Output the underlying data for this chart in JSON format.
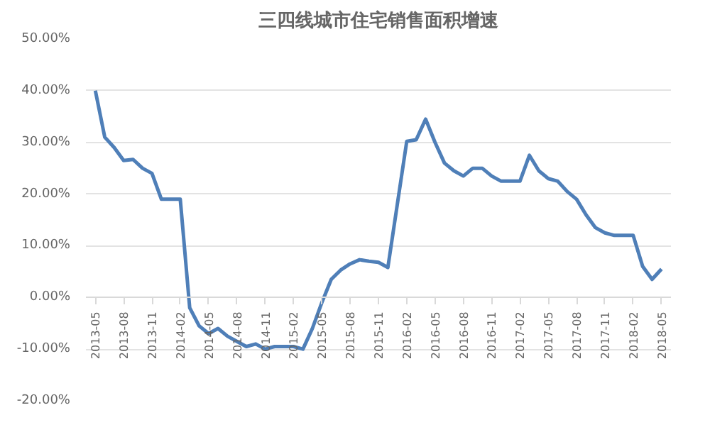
{
  "chart_data": {
    "type": "line",
    "title": "三四线城市住宅销售面积增速",
    "categories": [
      "2013-05",
      null,
      null,
      "2013-08",
      null,
      null,
      "2013-11",
      null,
      null,
      "2014-02",
      null,
      null,
      "2014-05",
      null,
      null,
      "2014-08",
      null,
      null,
      "2014-11",
      null,
      null,
      "2015-02",
      null,
      null,
      "2015-05",
      null,
      null,
      "2015-08",
      null,
      null,
      "2015-11",
      null,
      null,
      "2016-02",
      null,
      null,
      "2016-05",
      null,
      null,
      "2016-08",
      null,
      null,
      "2016-11",
      null,
      null,
      "2017-02",
      null,
      null,
      "2017-05",
      null,
      null,
      "2017-08",
      null,
      null,
      "2017-11",
      null,
      null,
      "2018-02",
      null,
      null,
      "2018-05"
    ],
    "series": [
      {
        "color": "#4f7fb8",
        "values": [
          40,
          31,
          29,
          26.5,
          26.7,
          25,
          24,
          19,
          19,
          19,
          -2,
          -5.5,
          -7,
          -6,
          -7.5,
          -8.5,
          -9.5,
          -9,
          -10,
          -9.5,
          -9.5,
          -9.5,
          -10,
          -6,
          -1,
          3.5,
          5.3,
          6.5,
          7.3,
          7,
          6.8,
          5.8,
          18,
          30.2,
          30.5,
          34.5,
          30,
          26,
          24.5,
          23.5,
          25,
          25,
          23.5,
          22.5,
          22.5,
          22.5,
          27.5,
          24.5,
          23,
          22.5,
          20.5,
          19,
          16,
          13.5,
          12.5,
          12,
          12,
          12,
          6,
          3.5,
          5.5
        ]
      }
    ],
    "ylim": [
      -20,
      50
    ],
    "yticks": [
      {
        "value": -20,
        "label": "-20.00%"
      },
      {
        "value": -10,
        "label": "-10.00%"
      },
      {
        "value": 0,
        "label": "0.00%"
      },
      {
        "value": 10,
        "label": "10.00%"
      },
      {
        "value": 20,
        "label": "20.00%"
      },
      {
        "value": 30,
        "label": "30.00%"
      },
      {
        "value": 40,
        "label": "40.00%"
      },
      {
        "value": 50,
        "label": "50.00%"
      }
    ],
    "grid": "y",
    "line_style": "solid"
  }
}
